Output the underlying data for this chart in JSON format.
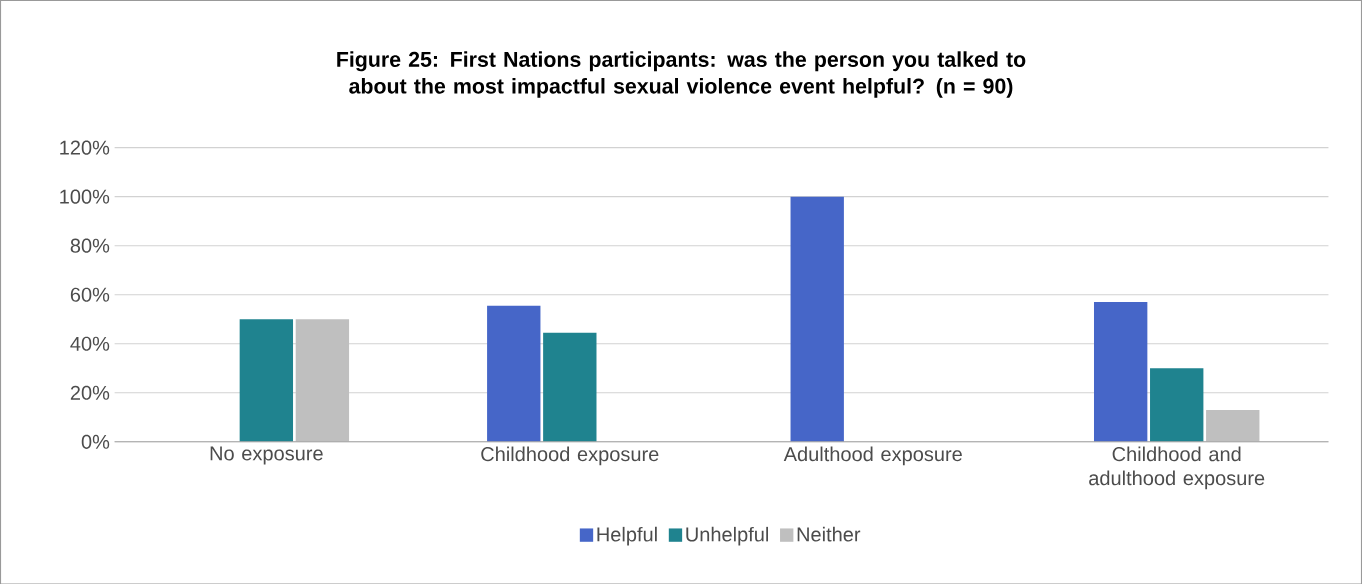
{
  "chart_data": {
    "type": "bar",
    "title": "Figure 25: First Nations participants: was the person you talked to about the most impactful sexual violence event helpful? (n = 90)",
    "categories": [
      "No exposure",
      "Childhood exposure",
      "Adulthood exposure",
      "Childhood and adulthood exposure"
    ],
    "series": [
      {
        "name": "Helpful",
        "color": "#4666c8",
        "values": [
          0,
          55.5,
          100,
          57
        ]
      },
      {
        "name": "Unhelpful",
        "color": "#1f838f",
        "values": [
          50,
          44.5,
          0,
          30
        ]
      },
      {
        "name": "Neither",
        "color": "#bfbfbf",
        "values": [
          50,
          0,
          0,
          13
        ]
      }
    ],
    "ylim": [
      0,
      120
    ],
    "yticks": [
      {
        "value": 0,
        "label": "0%"
      },
      {
        "value": 20,
        "label": "20%"
      },
      {
        "value": 40,
        "label": "40%"
      },
      {
        "value": 60,
        "label": "60%"
      },
      {
        "value": 80,
        "label": "80%"
      },
      {
        "value": 100,
        "label": "100%"
      },
      {
        "value": 120,
        "label": "120%"
      }
    ],
    "grid": "y",
    "legend": "bottom"
  }
}
